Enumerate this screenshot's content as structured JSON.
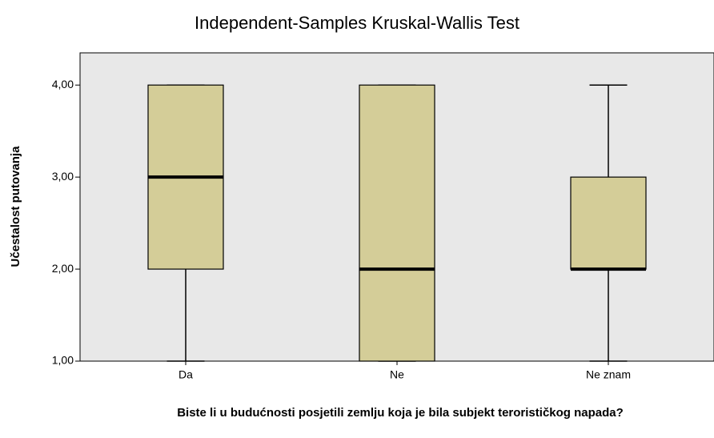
{
  "chart_data": {
    "type": "box",
    "title": "Independent-Samples Kruskal-Wallis Test",
    "xlabel": "Biste li u budućnosti posjetili zemlju koja je bila subjekt terorističkog napada?",
    "ylabel": "Učestalost putovanja",
    "categories": [
      "Da",
      "Ne",
      "Ne znam"
    ],
    "boxes": [
      {
        "min": 1,
        "q1": 2,
        "median": 3,
        "q3": 4,
        "max": 4
      },
      {
        "min": 1,
        "q1": 1,
        "median": 2,
        "q3": 4,
        "max": 4
      },
      {
        "min": 1,
        "q1": 2,
        "median": 2,
        "q3": 3,
        "max": 4
      }
    ],
    "color": "#d4cd98",
    "background": "#e8e8e8",
    "ylim": [
      1,
      4.35
    ],
    "yticks": [
      {
        "value": 1,
        "label": "1,00"
      },
      {
        "value": 2,
        "label": "2,00"
      },
      {
        "value": 3,
        "label": "3,00"
      },
      {
        "value": 4,
        "label": "4,00"
      }
    ]
  }
}
